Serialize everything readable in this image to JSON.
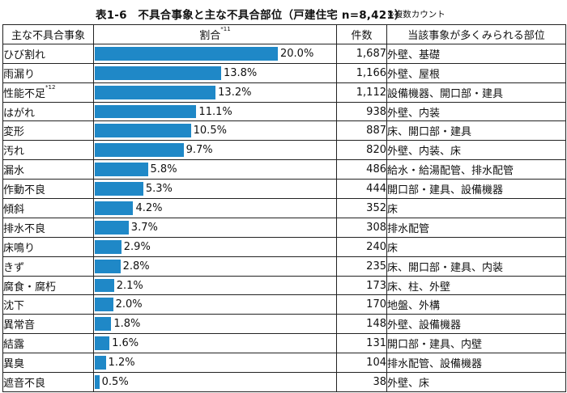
{
  "title": "表1-6　不具合事象と主な不具合部位（戸建住宅 n=8,421）",
  "title_note": "※複数カウント",
  "headers": {
    "category": "主な不具合事象",
    "ratio": "割合",
    "ratio_sup": "*11",
    "count": "件数",
    "location": "当該事象が多くみられる部位"
  },
  "chart_data": {
    "type": "bar",
    "orientation": "horizontal",
    "xlim": [
      0,
      20
    ],
    "categories": [
      "ひび割れ",
      "雨漏り",
      "性能不足",
      "はがれ",
      "変形",
      "汚れ",
      "漏水",
      "作動不良",
      "傾斜",
      "排水不良",
      "床鳴り",
      "きず",
      "腐食・腐朽",
      "沈下",
      "異常音",
      "結露",
      "異臭",
      "遮音不良"
    ],
    "category_sups": [
      "",
      "",
      "*12",
      "",
      "",
      "",
      "",
      "",
      "",
      "",
      "",
      "",
      "",
      "",
      "",
      "",
      "",
      ""
    ],
    "values": [
      20.0,
      13.8,
      13.2,
      11.1,
      10.5,
      9.7,
      5.8,
      5.3,
      4.2,
      3.7,
      2.9,
      2.8,
      2.1,
      2.0,
      1.8,
      1.6,
      1.2,
      0.5
    ],
    "value_labels": [
      "20.0%",
      "13.8%",
      "13.2%",
      "11.1%",
      "10.5%",
      "9.7%",
      "5.8%",
      "5.3%",
      "4.2%",
      "3.7%",
      "2.9%",
      "2.8%",
      "2.1%",
      "2.0%",
      "1.8%",
      "1.6%",
      "1.2%",
      "0.5%"
    ],
    "counts": [
      "1,687",
      "1,166",
      "1,112",
      "938",
      "887",
      "820",
      "486",
      "444",
      "352",
      "308",
      "240",
      "235",
      "173",
      "170",
      "148",
      "131",
      "104",
      "38"
    ],
    "locations": [
      "外壁、基礎",
      "外壁、屋根",
      "設備機器、開口部・建具",
      "外壁、内装",
      "床、開口部・建具",
      "外壁、内装、床",
      "給水・給湯配管、排水配管",
      "開口部・建具、設備機器",
      "床",
      "排水配管",
      "床",
      "床、開口部・建具、内装",
      "床、柱、外壁",
      "地盤、外構",
      "外壁、設備機器",
      "開口部・建具、内壁",
      "排水配管、設備機器",
      "外壁、床"
    ],
    "bar_color": "#1f88c7"
  }
}
